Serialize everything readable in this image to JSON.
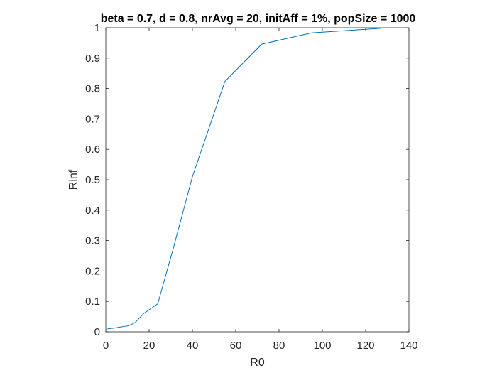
{
  "chart_data": {
    "type": "line",
    "title": "beta = 0.7, d = 0.8, nrAvg = 20, initAff = 1%, popSize = 1000",
    "xlabel": "R0",
    "ylabel": "Rinf",
    "xlim": [
      0,
      140
    ],
    "ylim": [
      0,
      1
    ],
    "xticks": [
      0,
      20,
      40,
      60,
      80,
      100,
      120,
      140
    ],
    "yticks": [
      0,
      0.1,
      0.2,
      0.3,
      0.4,
      0.5,
      0.6,
      0.7,
      0.8,
      0.9,
      1
    ],
    "xtick_labels": [
      "0",
      "20",
      "40",
      "60",
      "80",
      "100",
      "120",
      "140"
    ],
    "ytick_labels": [
      "0",
      "0.1",
      "0.2",
      "0.3",
      "0.4",
      "0.5",
      "0.6",
      "0.7",
      "0.8",
      "0.9",
      "1"
    ],
    "grid": false,
    "series": [
      {
        "color": "#0072BD",
        "x": [
          0.8,
          3.5,
          7,
          10.5,
          13.5,
          17.5,
          24,
          31,
          40,
          55,
          72,
          95,
          110,
          127
        ],
        "y": [
          0.01,
          0.012,
          0.016,
          0.02,
          0.03,
          0.06,
          0.092,
          0.27,
          0.51,
          0.823,
          0.946,
          0.983,
          0.99,
          0.998
        ]
      }
    ]
  }
}
